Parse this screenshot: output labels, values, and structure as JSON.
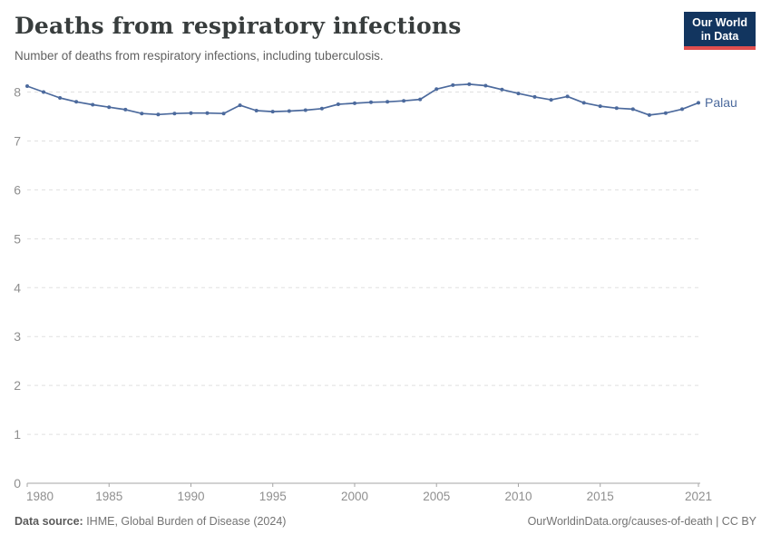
{
  "header": {
    "title": "Deaths from respiratory infections",
    "subtitle": "Number of deaths from respiratory infections, including tuberculosis.",
    "logo": {
      "line1": "Our World",
      "line2": "in Data"
    }
  },
  "chart_data": {
    "type": "line",
    "title": "Deaths from respiratory infections",
    "subtitle": "Number of deaths from respiratory infections, including tuberculosis.",
    "xlabel": "",
    "ylabel": "",
    "xlim": [
      1980,
      2021
    ],
    "ylim": [
      0,
      8.4
    ],
    "grid": "dashed-horizontal",
    "legend_position": "end-of-line-label",
    "x_ticks": [
      1980,
      1985,
      1990,
      1995,
      2000,
      2005,
      2010,
      2015,
      2021
    ],
    "y_ticks": [
      0,
      1,
      2,
      3,
      4,
      5,
      6,
      7,
      8
    ],
    "series": [
      {
        "name": "Palau",
        "color": "#4c6a9d",
        "x": [
          1980,
          1981,
          1982,
          1983,
          1984,
          1985,
          1986,
          1987,
          1988,
          1989,
          1990,
          1991,
          1992,
          1993,
          1994,
          1995,
          1996,
          1997,
          1998,
          1999,
          2000,
          2001,
          2002,
          2003,
          2004,
          2005,
          2006,
          2007,
          2008,
          2009,
          2010,
          2011,
          2012,
          2013,
          2014,
          2015,
          2016,
          2017,
          2018,
          2019,
          2020,
          2021
        ],
        "values": [
          8.12,
          8.0,
          7.88,
          7.8,
          7.74,
          7.69,
          7.64,
          7.56,
          7.54,
          7.56,
          7.57,
          7.57,
          7.56,
          7.73,
          7.62,
          7.6,
          7.61,
          7.63,
          7.66,
          7.75,
          7.77,
          7.79,
          7.8,
          7.82,
          7.85,
          8.06,
          8.14,
          8.16,
          8.13,
          8.05,
          7.97,
          7.9,
          7.84,
          7.91,
          7.78,
          7.71,
          7.67,
          7.65,
          7.53,
          7.57,
          7.65,
          7.78
        ]
      }
    ]
  },
  "footer": {
    "source_label": "Data source:",
    "source_text": " IHME, Global Burden of Disease (2024)",
    "right_text": "OurWorldinData.org/causes-of-death | CC BY"
  },
  "colors": {
    "line": "#4c6a9d",
    "grid": "#e0e0e0",
    "axis": "#a5a5a5",
    "tick_label": "#8f8f8f",
    "logo_bg": "#12355f",
    "logo_accent": "#e04e4e"
  }
}
